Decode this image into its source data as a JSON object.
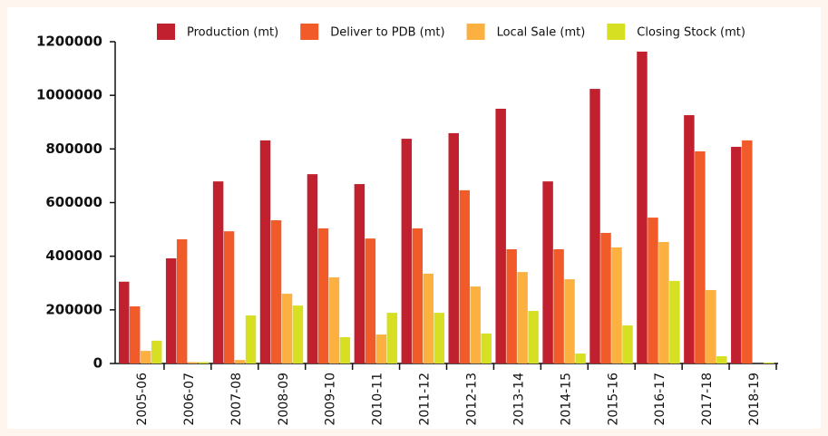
{
  "chart_data": {
    "type": "bar",
    "categories": [
      "2005-06",
      "2006-07",
      "2007-08",
      "2008-09",
      "2009-10",
      "2010-11",
      "2011-12",
      "2012-13",
      "2013-14",
      "2014-15",
      "2015-16",
      "2016-17",
      "2017-18",
      "2018-19"
    ],
    "series": [
      {
        "name": "Production (mt)",
        "color": "#c1202f",
        "values": [
          305000,
          392000,
          679000,
          832000,
          706000,
          669000,
          838000,
          859000,
          950000,
          679000,
          1024000,
          1163000,
          926000,
          808000
        ]
      },
      {
        "name": "Deliver to PDB (mt)",
        "color": "#f15a29",
        "values": [
          213000,
          463000,
          493000,
          534000,
          504000,
          466000,
          504000,
          646000,
          426000,
          426000,
          487000,
          544000,
          791000,
          832000
        ]
      },
      {
        "name": "Local Sale (mt)",
        "color": "#fbb040",
        "values": [
          47000,
          5000,
          13000,
          260000,
          321000,
          108000,
          335000,
          287000,
          341000,
          314000,
          433000,
          453000,
          274000,
          0
        ]
      },
      {
        "name": "Closing Stock (mt)",
        "color": "#d7df23",
        "values": [
          85000,
          5000,
          179000,
          216000,
          98000,
          189000,
          189000,
          112000,
          196000,
          37000,
          142000,
          308000,
          27000,
          3000
        ]
      }
    ],
    "ylim": [
      0,
      1200000
    ],
    "yticks": [
      0,
      200000,
      400000,
      600000,
      800000,
      1000000,
      1200000
    ]
  }
}
